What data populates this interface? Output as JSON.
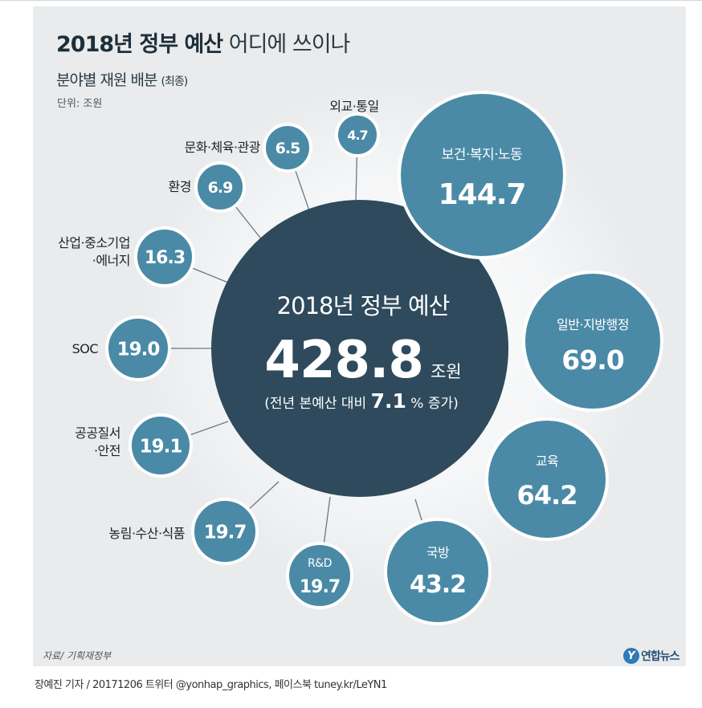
{
  "header": {
    "title_bold": "2018년 정부 예산",
    "title_light": "어디에 쓰이나",
    "subtitle": "분야별 재원 배분",
    "subtitle_note": "(최종)",
    "unit": "단위: 조원"
  },
  "center": {
    "label": "2018년 정부 예산",
    "value": "428.8",
    "unit": "조원",
    "note_pre": "(전년 본예산 대비 ",
    "note_num": "7.1",
    "note_post": "% 증가)"
  },
  "chart_data": {
    "type": "bubble",
    "title": "2018년 정부 예산 어디에 쓰이나",
    "subtitle": "분야별 재원 배분 (최종)",
    "unit": "단위: 조원",
    "total": 428.8,
    "total_growth_pct": 7.1,
    "categories": [
      {
        "name": "보건·복지·노동",
        "value": 144.7
      },
      {
        "name": "일반·지방행정",
        "value": 69.0
      },
      {
        "name": "교육",
        "value": 64.2
      },
      {
        "name": "국방",
        "value": 43.2
      },
      {
        "name": "R&D",
        "value": 19.7
      },
      {
        "name": "농림·수산·식품",
        "value": 19.7
      },
      {
        "name": "공공질서·안전",
        "value": 19.1
      },
      {
        "name": "SOC",
        "value": 19.0
      },
      {
        "name": "산업·중소기업·에너지",
        "value": 16.3
      },
      {
        "name": "환경",
        "value": 6.9
      },
      {
        "name": "문화·체육·관광",
        "value": 6.5
      },
      {
        "name": "외교·통일",
        "value": 4.7
      }
    ]
  },
  "display": [
    {
      "lines": [
        "보건·복지·노동"
      ],
      "value": "144.7"
    },
    {
      "lines": [
        "일반·지방행정"
      ],
      "value": "69.0"
    },
    {
      "lines": [
        "교육"
      ],
      "value": "64.2"
    },
    {
      "lines": [
        "국방"
      ],
      "value": "43.2"
    },
    {
      "lines": [
        "R&D"
      ],
      "value": "19.7"
    },
    {
      "lines": [
        "농림·수산·식품"
      ],
      "value": "19.7"
    },
    {
      "lines": [
        "공공질서",
        "·안전"
      ],
      "value": "19.1"
    },
    {
      "lines": [
        "SOC"
      ],
      "value": "19.0"
    },
    {
      "lines": [
        "산업·중소기업",
        "·에너지"
      ],
      "value": "16.3"
    },
    {
      "lines": [
        "환경"
      ],
      "value": "6.9"
    },
    {
      "lines": [
        "문화·체육·관광"
      ],
      "value": "6.5"
    },
    {
      "lines": [
        "외교·통일"
      ],
      "value": "4.7"
    }
  ],
  "colors": {
    "center_fill": "#2e4a5c",
    "bubble_fill": "#4a8aa6",
    "bubble_stroke": "#ffffff",
    "line": "#6d7880",
    "panel_bg": "#e9ebed"
  },
  "footer": {
    "source": "자료/ 기획재정부",
    "logo_mark": "Y",
    "logo_text": "연합뉴스",
    "credit": "장예진 기자 / 20171206 트위터 @yonhap_graphics, 페이스북 tuney.kr/LeYN1"
  }
}
